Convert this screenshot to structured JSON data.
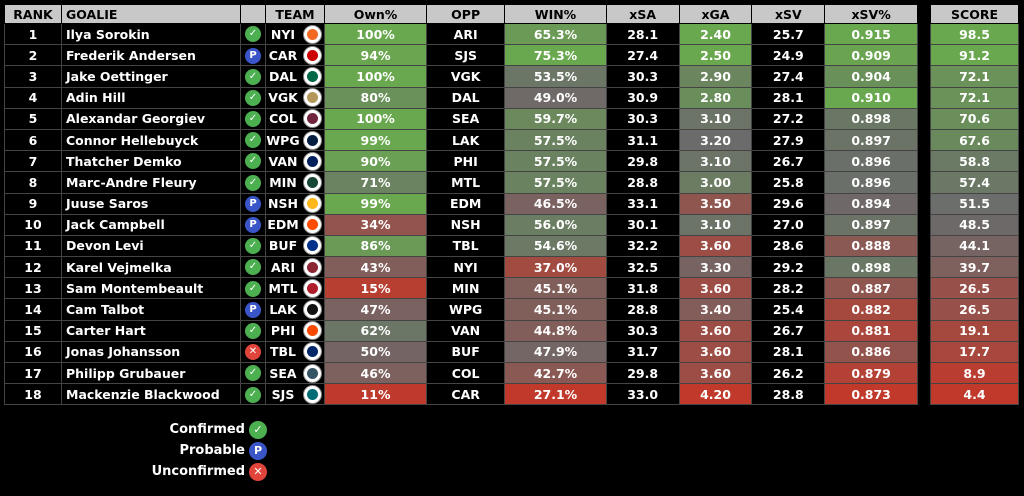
{
  "headers": {
    "rank": "RANK",
    "goalie": "GOALIE",
    "team": "TEAM",
    "own": "Own%",
    "opp": "OPP",
    "win": "WIN%",
    "xsa": "xSA",
    "xga": "xGA",
    "xsv": "xSV",
    "xsvp": "xSV%",
    "score": "SCORE"
  },
  "status_glyphs": {
    "confirmed": "✓",
    "probable": "P",
    "unconfirmed": "✕"
  },
  "colors": {
    "green": "#6aa84f",
    "red": "#c0392b",
    "gray": "#6b6b6b",
    "confirmed": "#4caf50",
    "probable": "#3a55c8",
    "unconfirmed": "#e0443a"
  },
  "rows": [
    {
      "rank": "1",
      "goalie": "Ilya Sorokin",
      "status": "confirmed",
      "team": "NYI",
      "own": "100%",
      "opp": "ARI",
      "win": "65.3%",
      "xsa": "28.1",
      "xga": "2.40",
      "xsv": "25.7",
      "xsvp": "0.915",
      "score": "98.5",
      "team_color": "#f26924"
    },
    {
      "rank": "2",
      "goalie": "Frederik Andersen",
      "status": "probable",
      "team": "CAR",
      "own": "94%",
      "opp": "SJS",
      "win": "75.3%",
      "xsa": "27.4",
      "xga": "2.50",
      "xsv": "24.9",
      "xsvp": "0.909",
      "score": "91.2",
      "team_color": "#cc0000"
    },
    {
      "rank": "3",
      "goalie": "Jake Oettinger",
      "status": "confirmed",
      "team": "DAL",
      "own": "100%",
      "opp": "VGK",
      "win": "53.5%",
      "xsa": "30.3",
      "xga": "2.90",
      "xsv": "27.4",
      "xsvp": "0.904",
      "score": "72.1",
      "team_color": "#006847"
    },
    {
      "rank": "4",
      "goalie": "Adin Hill",
      "status": "confirmed",
      "team": "VGK",
      "own": "80%",
      "opp": "DAL",
      "win": "49.0%",
      "xsa": "30.9",
      "xga": "2.80",
      "xsv": "28.1",
      "xsvp": "0.910",
      "score": "72.1",
      "team_color": "#b4975a"
    },
    {
      "rank": "5",
      "goalie": "Alexandar Georgiev",
      "status": "confirmed",
      "team": "COL",
      "own": "100%",
      "opp": "SEA",
      "win": "59.7%",
      "xsa": "30.3",
      "xga": "3.10",
      "xsv": "27.2",
      "xsvp": "0.898",
      "score": "70.6",
      "team_color": "#6f263d"
    },
    {
      "rank": "6",
      "goalie": "Connor Hellebuyck",
      "status": "confirmed",
      "team": "WPG",
      "own": "99%",
      "opp": "LAK",
      "win": "57.5%",
      "xsa": "31.1",
      "xga": "3.20",
      "xsv": "27.9",
      "xsvp": "0.897",
      "score": "67.6",
      "team_color": "#041e42"
    },
    {
      "rank": "7",
      "goalie": "Thatcher Demko",
      "status": "confirmed",
      "team": "VAN",
      "own": "90%",
      "opp": "PHI",
      "win": "57.5%",
      "xsa": "29.8",
      "xga": "3.10",
      "xsv": "26.7",
      "xsvp": "0.896",
      "score": "58.8",
      "team_color": "#00205b"
    },
    {
      "rank": "8",
      "goalie": "Marc-Andre Fleury",
      "status": "confirmed",
      "team": "MIN",
      "own": "71%",
      "opp": "MTL",
      "win": "57.5%",
      "xsa": "28.8",
      "xga": "3.00",
      "xsv": "25.8",
      "xsvp": "0.896",
      "score": "57.4",
      "team_color": "#154734"
    },
    {
      "rank": "9",
      "goalie": "Juuse Saros",
      "status": "probable",
      "team": "NSH",
      "own": "99%",
      "opp": "EDM",
      "win": "46.5%",
      "xsa": "33.1",
      "xga": "3.50",
      "xsv": "29.6",
      "xsvp": "0.894",
      "score": "51.5",
      "team_color": "#ffb81c"
    },
    {
      "rank": "10",
      "goalie": "Jack Campbell",
      "status": "probable",
      "team": "EDM",
      "own": "34%",
      "opp": "NSH",
      "win": "56.0%",
      "xsa": "30.1",
      "xga": "3.10",
      "xsv": "27.0",
      "xsvp": "0.897",
      "score": "48.5",
      "team_color": "#ff4c00"
    },
    {
      "rank": "11",
      "goalie": "Devon Levi",
      "status": "confirmed",
      "team": "BUF",
      "own": "86%",
      "opp": "TBL",
      "win": "54.6%",
      "xsa": "32.2",
      "xga": "3.60",
      "xsv": "28.6",
      "xsvp": "0.888",
      "score": "44.1",
      "team_color": "#003087"
    },
    {
      "rank": "12",
      "goalie": "Karel Vejmelka",
      "status": "confirmed",
      "team": "ARI",
      "own": "43%",
      "opp": "NYI",
      "win": "37.0%",
      "xsa": "32.5",
      "xga": "3.30",
      "xsv": "29.2",
      "xsvp": "0.898",
      "score": "39.7",
      "team_color": "#8c2633"
    },
    {
      "rank": "13",
      "goalie": "Sam Montembeault",
      "status": "confirmed",
      "team": "MTL",
      "own": "15%",
      "opp": "MIN",
      "win": "45.1%",
      "xsa": "31.8",
      "xga": "3.60",
      "xsv": "28.2",
      "xsvp": "0.887",
      "score": "26.5",
      "team_color": "#af1e2d"
    },
    {
      "rank": "14",
      "goalie": "Cam Talbot",
      "status": "probable",
      "team": "LAK",
      "own": "47%",
      "opp": "WPG",
      "win": "45.1%",
      "xsa": "28.8",
      "xga": "3.40",
      "xsv": "25.4",
      "xsvp": "0.882",
      "score": "26.5",
      "team_color": "#111111"
    },
    {
      "rank": "15",
      "goalie": "Carter Hart",
      "status": "confirmed",
      "team": "PHI",
      "own": "62%",
      "opp": "VAN",
      "win": "44.8%",
      "xsa": "30.3",
      "xga": "3.60",
      "xsv": "26.7",
      "xsvp": "0.881",
      "score": "19.1",
      "team_color": "#f74902"
    },
    {
      "rank": "16",
      "goalie": "Jonas Johansson",
      "status": "unconfirmed",
      "team": "TBL",
      "own": "50%",
      "opp": "BUF",
      "win": "47.9%",
      "xsa": "31.7",
      "xga": "3.60",
      "xsv": "28.1",
      "xsvp": "0.886",
      "score": "17.7",
      "team_color": "#002868"
    },
    {
      "rank": "17",
      "goalie": "Philipp Grubauer",
      "status": "confirmed",
      "team": "SEA",
      "own": "46%",
      "opp": "COL",
      "win": "42.7%",
      "xsa": "29.8",
      "xga": "3.60",
      "xsv": "26.2",
      "xsvp": "0.879",
      "score": "8.9",
      "team_color": "#355464"
    },
    {
      "rank": "18",
      "goalie": "Mackenzie Blackwood",
      "status": "confirmed",
      "team": "SJS",
      "own": "11%",
      "opp": "CAR",
      "win": "27.1%",
      "xsa": "33.0",
      "xga": "4.20",
      "xsv": "28.8",
      "xsvp": "0.873",
      "score": "4.4",
      "team_color": "#006d75"
    }
  ],
  "legend": [
    {
      "label": "Confirmed",
      "status": "confirmed"
    },
    {
      "label": "Probable",
      "status": "probable"
    },
    {
      "label": "Unconfirmed",
      "status": "unconfirmed"
    }
  ]
}
